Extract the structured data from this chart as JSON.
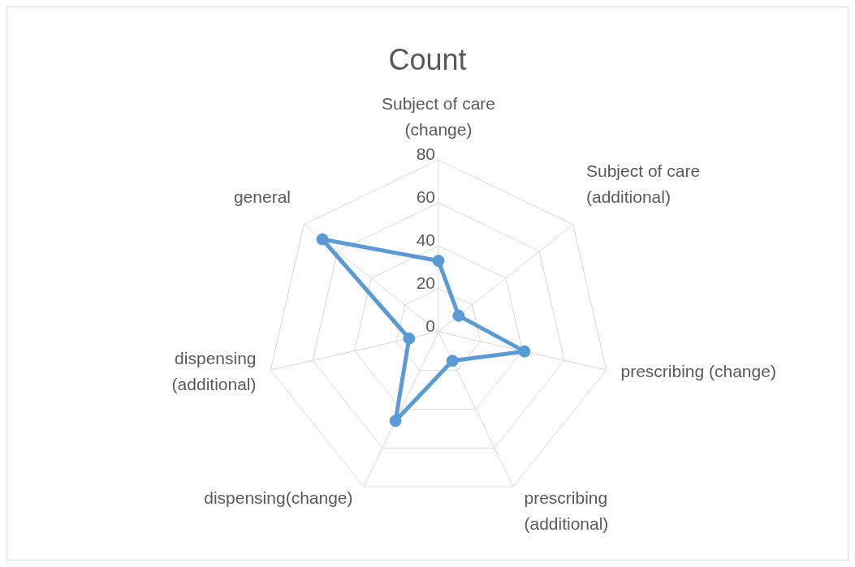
{
  "chart_data": {
    "type": "radar",
    "title": "Count",
    "categories": [
      "Subject of care (change)",
      "Subject of care (additional)",
      "prescribing (change)",
      "prescribing (additional)",
      "dispensing(change)",
      "dispensing (additional)",
      "general"
    ],
    "series": [
      {
        "color": "#5b9bd5",
        "values": [
          33,
          12,
          41,
          15,
          46,
          14,
          69
        ]
      }
    ],
    "ylim": [
      0,
      80
    ],
    "yticks": [
      0,
      20,
      40,
      60,
      80
    ],
    "grid": true,
    "marker": "circle",
    "line_style": "solid"
  }
}
